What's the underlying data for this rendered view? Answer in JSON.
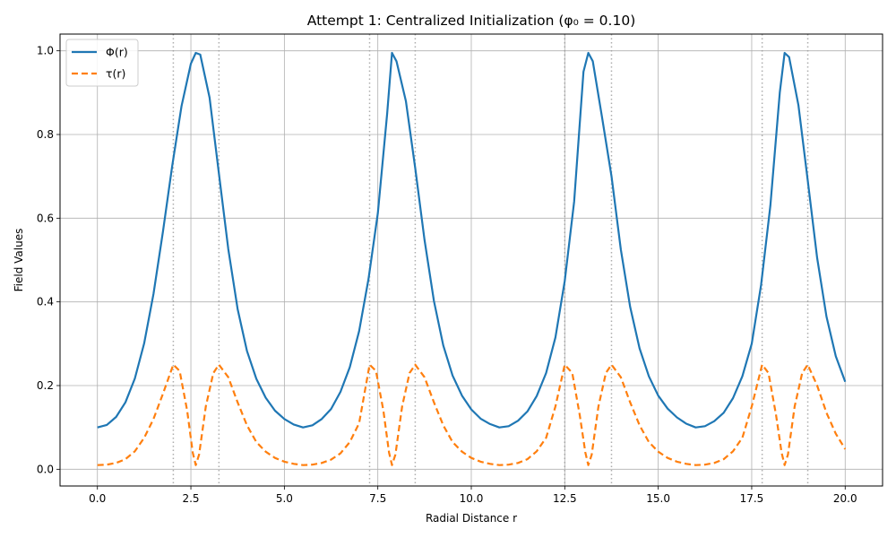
{
  "chart_data": {
    "type": "line",
    "title": "Attempt 1: Centralized Initialization (φ₀ = 0.10)",
    "xlabel": "Radial Distance r",
    "ylabel": "Field Values",
    "xlim": [
      -1.0,
      21.0
    ],
    "ylim": [
      -0.04,
      1.04
    ],
    "xticks": [
      0.0,
      2.5,
      5.0,
      7.5,
      10.0,
      12.5,
      15.0,
      17.5,
      20.0
    ],
    "xtick_labels": [
      "0.0",
      "2.5",
      "5.0",
      "7.5",
      "10.0",
      "12.5",
      "15.0",
      "17.5",
      "20.0"
    ],
    "yticks": [
      0.0,
      0.2,
      0.4,
      0.6,
      0.8,
      1.0
    ],
    "ytick_labels": [
      "0.0",
      "0.2",
      "0.4",
      "0.6",
      "0.8",
      "1.0"
    ],
    "grid": true,
    "legend_position": "top-left",
    "vlines": [
      2.03,
      3.25,
      7.28,
      8.5,
      12.5,
      13.75,
      17.78,
      19.0
    ],
    "series": [
      {
        "name": "Φ(r)",
        "color": "#1f77b4",
        "style": "solid",
        "x": [
          0.0,
          0.25,
          0.5,
          0.75,
          1.0,
          1.25,
          1.5,
          1.75,
          2.0,
          2.25,
          2.5,
          2.63,
          2.75,
          3.0,
          3.25,
          3.5,
          3.75,
          4.0,
          4.25,
          4.5,
          4.75,
          5.0,
          5.25,
          5.5,
          5.75,
          6.0,
          6.25,
          6.5,
          6.75,
          7.0,
          7.25,
          7.5,
          7.75,
          7.88,
          8.0,
          8.25,
          8.5,
          8.75,
          9.0,
          9.25,
          9.5,
          9.75,
          10.0,
          10.25,
          10.5,
          10.75,
          11.0,
          11.25,
          11.5,
          11.75,
          12.0,
          12.25,
          12.5,
          12.75,
          13.0,
          13.13,
          13.25,
          13.5,
          13.75,
          14.0,
          14.25,
          14.5,
          14.75,
          15.0,
          15.25,
          15.5,
          15.75,
          16.0,
          16.25,
          16.5,
          16.75,
          17.0,
          17.25,
          17.5,
          17.75,
          18.0,
          18.25,
          18.38,
          18.5,
          18.75,
          19.0,
          19.25,
          19.5,
          19.75,
          20.0
        ],
        "y": [
          0.1,
          0.106,
          0.125,
          0.16,
          0.217,
          0.301,
          0.419,
          0.567,
          0.725,
          0.868,
          0.969,
          0.995,
          0.991,
          0.888,
          0.707,
          0.526,
          0.383,
          0.283,
          0.216,
          0.171,
          0.14,
          0.12,
          0.107,
          0.1,
          0.105,
          0.12,
          0.144,
          0.185,
          0.244,
          0.33,
          0.455,
          0.612,
          0.85,
          0.995,
          0.975,
          0.88,
          0.72,
          0.548,
          0.402,
          0.296,
          0.224,
          0.176,
          0.143,
          0.121,
          0.108,
          0.1,
          0.103,
          0.116,
          0.138,
          0.175,
          0.23,
          0.315,
          0.45,
          0.64,
          0.95,
          0.995,
          0.975,
          0.84,
          0.7,
          0.525,
          0.388,
          0.289,
          0.222,
          0.176,
          0.145,
          0.124,
          0.109,
          0.1,
          0.103,
          0.115,
          0.135,
          0.17,
          0.222,
          0.3,
          0.44,
          0.63,
          0.9,
          0.995,
          0.985,
          0.87,
          0.69,
          0.505,
          0.365,
          0.27,
          0.209
        ]
      },
      {
        "name": "τ(r)",
        "color": "#ff7f0e",
        "style": "dashed",
        "x": [
          0.0,
          0.25,
          0.5,
          0.75,
          1.0,
          1.25,
          1.5,
          1.75,
          2.03,
          2.2,
          2.4,
          2.55,
          2.63,
          2.72,
          2.9,
          3.1,
          3.25,
          3.5,
          3.75,
          4.0,
          4.25,
          4.5,
          4.75,
          5.0,
          5.25,
          5.5,
          5.75,
          6.0,
          6.25,
          6.5,
          6.75,
          7.0,
          7.28,
          7.45,
          7.65,
          7.8,
          7.88,
          7.97,
          8.15,
          8.35,
          8.5,
          8.75,
          9.0,
          9.25,
          9.5,
          9.75,
          10.0,
          10.25,
          10.5,
          10.75,
          11.0,
          11.25,
          11.5,
          11.75,
          12.0,
          12.25,
          12.5,
          12.7,
          12.9,
          13.05,
          13.13,
          13.22,
          13.4,
          13.6,
          13.75,
          14.0,
          14.25,
          14.5,
          14.75,
          15.0,
          15.25,
          15.5,
          15.75,
          16.0,
          16.25,
          16.5,
          16.75,
          17.0,
          17.25,
          17.5,
          17.78,
          17.95,
          18.15,
          18.3,
          18.38,
          18.47,
          18.65,
          18.85,
          19.0,
          19.25,
          19.5,
          19.75,
          20.0
        ],
        "y": [
          0.01,
          0.011,
          0.015,
          0.024,
          0.043,
          0.075,
          0.12,
          0.18,
          0.25,
          0.235,
          0.14,
          0.04,
          0.01,
          0.035,
          0.15,
          0.23,
          0.25,
          0.22,
          0.16,
          0.105,
          0.065,
          0.042,
          0.027,
          0.018,
          0.013,
          0.01,
          0.011,
          0.015,
          0.023,
          0.038,
          0.065,
          0.11,
          0.25,
          0.235,
          0.14,
          0.04,
          0.01,
          0.035,
          0.15,
          0.23,
          0.25,
          0.22,
          0.16,
          0.105,
          0.065,
          0.042,
          0.027,
          0.018,
          0.013,
          0.01,
          0.011,
          0.015,
          0.024,
          0.043,
          0.075,
          0.15,
          0.25,
          0.23,
          0.13,
          0.04,
          0.01,
          0.035,
          0.15,
          0.23,
          0.25,
          0.22,
          0.16,
          0.105,
          0.065,
          0.042,
          0.027,
          0.018,
          0.013,
          0.01,
          0.011,
          0.015,
          0.024,
          0.043,
          0.075,
          0.15,
          0.25,
          0.23,
          0.13,
          0.04,
          0.01,
          0.035,
          0.15,
          0.23,
          0.25,
          0.2,
          0.135,
          0.085,
          0.048
        ]
      }
    ]
  }
}
